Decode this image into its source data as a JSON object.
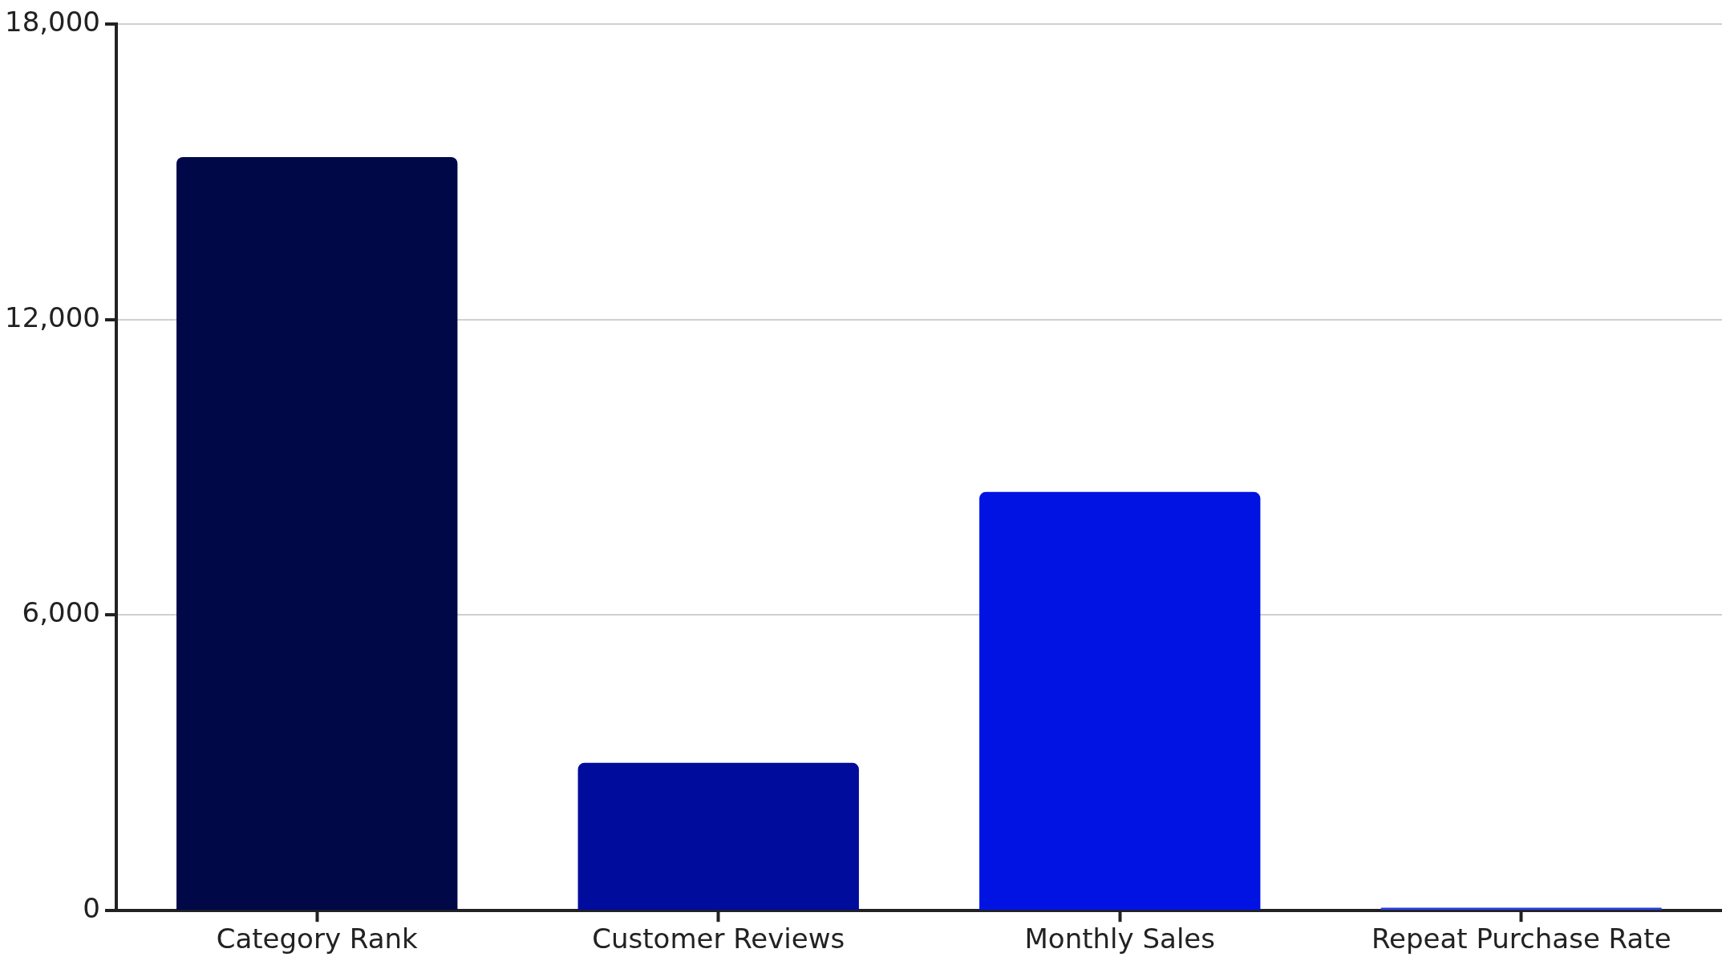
{
  "chart_data": {
    "type": "bar",
    "categories": [
      "Category Rank",
      "Customer Reviews",
      "Monthly Sales",
      "Repeat Purchase Rate"
    ],
    "values": [
      15300,
      3000,
      8500,
      60
    ],
    "colors": [
      "#000848",
      "#000c9c",
      "#0013e3",
      "#2b3fe0"
    ],
    "ylim": [
      0,
      18000
    ],
    "yticks": [
      0,
      {
        "value": 6000,
        "label": "6,000"
      },
      {
        "value": 12000,
        "label": "12,000"
      },
      {
        "value": 18000,
        "label": "18,000"
      }
    ],
    "grid": "y",
    "legend": false
  }
}
